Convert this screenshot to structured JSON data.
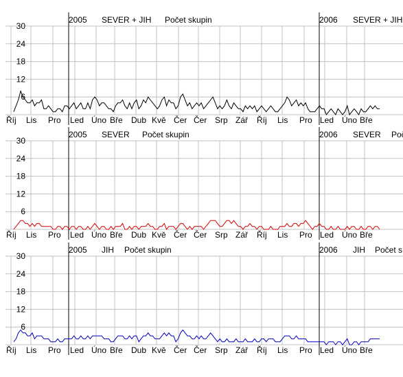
{
  "colors": {
    "background": "#ffffff",
    "grid": "#c0c0c0",
    "axis": "#000000",
    "text": "#000000"
  },
  "chart_data": [
    {
      "type": "line",
      "title_year_1": "2005",
      "title_text_1": "SEVER + JIH",
      "title_metric_1": "Počet skupin",
      "title_year_2": "2006",
      "title_text_2": "SEVER + JIH",
      "xlabel": "",
      "ylabel": "",
      "ylim": [
        0,
        30
      ],
      "yticks": [
        "30",
        "24",
        "18",
        "12",
        "6"
      ],
      "months": [
        "Říj",
        "Lis",
        "Pro",
        "Led",
        "Úno",
        "Bře",
        "Dub",
        "Kvě",
        "Čer",
        "Čer",
        "Srp",
        "Zář",
        "Říj",
        "Lis",
        "Pro",
        "Led",
        "Úno",
        "Bře"
      ],
      "grid": true,
      "series": [
        {
          "color": "#000000",
          "values": [
            1,
            3,
            5,
            8,
            6,
            5,
            4,
            4,
            5,
            3,
            4,
            4,
            5,
            2,
            2,
            3,
            2,
            1,
            1,
            2,
            2,
            1,
            3,
            3,
            2,
            3,
            4,
            2,
            3,
            4,
            2,
            2,
            4,
            2,
            5,
            6,
            5,
            3,
            4,
            4,
            3,
            2,
            2,
            1,
            3,
            4,
            4,
            5,
            3,
            2,
            4,
            2,
            4,
            5,
            2,
            3,
            5,
            4,
            6,
            5,
            4,
            3,
            2,
            3,
            5,
            6,
            3,
            5,
            4,
            4,
            2,
            3,
            6,
            7,
            5,
            3,
            4,
            2,
            3,
            4,
            3,
            4,
            2,
            3,
            4,
            5,
            6,
            4,
            2,
            3,
            2,
            3,
            5,
            3,
            2,
            4,
            3,
            2,
            2,
            1,
            3,
            2,
            3,
            2,
            3,
            1,
            2,
            3,
            2,
            1,
            2,
            3,
            2,
            1,
            1,
            2,
            3,
            4,
            6,
            5,
            3,
            4,
            5,
            3,
            4,
            3,
            4,
            2,
            1,
            1,
            1,
            2,
            3,
            2,
            2,
            0,
            1,
            2,
            1,
            0,
            2,
            1,
            0,
            1,
            3,
            0,
            1,
            2,
            1,
            0,
            2,
            1,
            1,
            2,
            3,
            2,
            3,
            2,
            2
          ]
        }
      ]
    },
    {
      "type": "line",
      "title_year_1": "2005",
      "title_text_1": "SEVER",
      "title_metric_1": "Počet skupin",
      "title_year_2": "2006",
      "title_text_2": "SEVER",
      "title_metric_2": "Počet skupin",
      "xlabel": "",
      "ylabel": "",
      "ylim": [
        0,
        30
      ],
      "yticks": [
        "30",
        "24",
        "18",
        "12",
        "6"
      ],
      "months": [
        "Říj",
        "Lis",
        "Pro",
        "Led",
        "Úno",
        "Bře",
        "Dub",
        "Kvě",
        "Čer",
        "Čer",
        "Srp",
        "Zář",
        "Říj",
        "Lis",
        "Pro",
        "Led",
        "Úno",
        "Bře"
      ],
      "grid": true,
      "series": [
        {
          "color": "#d40000",
          "values": [
            0,
            1,
            2,
            3,
            3,
            2,
            2,
            1,
            2,
            1,
            2,
            2,
            1,
            1,
            1,
            1,
            1,
            0,
            0,
            1,
            1,
            0,
            1,
            1,
            0,
            1,
            1,
            0,
            1,
            1,
            0,
            0,
            1,
            0,
            1,
            2,
            1,
            0,
            1,
            1,
            0,
            0,
            1,
            0,
            1,
            1,
            1,
            2,
            0,
            0,
            1,
            0,
            1,
            1,
            0,
            1,
            1,
            1,
            2,
            1,
            1,
            0,
            0,
            1,
            1,
            2,
            0,
            1,
            1,
            1,
            0,
            1,
            2,
            2,
            1,
            0,
            1,
            0,
            1,
            1,
            1,
            1,
            0,
            1,
            2,
            3,
            3,
            3,
            2,
            1,
            1,
            2,
            3,
            3,
            2,
            3,
            2,
            1,
            1,
            0,
            1,
            1,
            2,
            1,
            1,
            0,
            1,
            1,
            0,
            0,
            0,
            1,
            0,
            0,
            0,
            1,
            1,
            1,
            2,
            1,
            1,
            2,
            2,
            1,
            2,
            2,
            3,
            2,
            1,
            0,
            1,
            1,
            2,
            1,
            1,
            0,
            0,
            1,
            0,
            0,
            1,
            0,
            0,
            0,
            1,
            0,
            1,
            1,
            0,
            0,
            1,
            0,
            0,
            1,
            1,
            0,
            1,
            1,
            0
          ]
        }
      ]
    },
    {
      "type": "line",
      "title_year_1": "2005",
      "title_text_1": "JIH",
      "title_metric_1": "Počet skupin",
      "title_year_2": "2006",
      "title_text_2": "JIH",
      "title_metric_2": "Počet s",
      "xlabel": "",
      "ylabel": "",
      "ylim": [
        0,
        30
      ],
      "yticks": [
        "30",
        "24",
        "18",
        "12",
        "6"
      ],
      "months": [
        "Říj",
        "Lis",
        "Pro",
        "Led",
        "Úno",
        "Bře",
        "Dub",
        "Kvě",
        "Čer",
        "Čer",
        "Srp",
        "Zář",
        "Říj",
        "Lis",
        "Pro",
        "Led",
        "Úno",
        "Bře"
      ],
      "grid": true,
      "series": [
        {
          "color": "#0000c0",
          "values": [
            1,
            2,
            4,
            5,
            4,
            4,
            3,
            3,
            4,
            2,
            3,
            3,
            3,
            2,
            2,
            2,
            1,
            1,
            1,
            2,
            1,
            1,
            2,
            2,
            2,
            2,
            3,
            2,
            2,
            3,
            2,
            2,
            3,
            2,
            3,
            3,
            3,
            3,
            3,
            2,
            2,
            2,
            1,
            1,
            2,
            3,
            3,
            3,
            2,
            2,
            3,
            2,
            3,
            3,
            1,
            2,
            3,
            3,
            4,
            3,
            3,
            2,
            2,
            2,
            3,
            4,
            3,
            4,
            3,
            3,
            1,
            2,
            4,
            5,
            4,
            3,
            3,
            2,
            2,
            3,
            2,
            3,
            2,
            2,
            3,
            4,
            3,
            2,
            1,
            2,
            1,
            1,
            2,
            1,
            1,
            1,
            2,
            1,
            1,
            1,
            2,
            1,
            1,
            1,
            2,
            1,
            1,
            2,
            2,
            1,
            2,
            2,
            2,
            1,
            1,
            1,
            2,
            3,
            3,
            3,
            2,
            2,
            3,
            2,
            2,
            2,
            2,
            1,
            1,
            1,
            1,
            1,
            1,
            1,
            1,
            0,
            1,
            1,
            1,
            0,
            1,
            1,
            0,
            1,
            2,
            0,
            0,
            1,
            1,
            0,
            1,
            1,
            1,
            1,
            2,
            2,
            2,
            2,
            2
          ]
        }
      ]
    }
  ]
}
